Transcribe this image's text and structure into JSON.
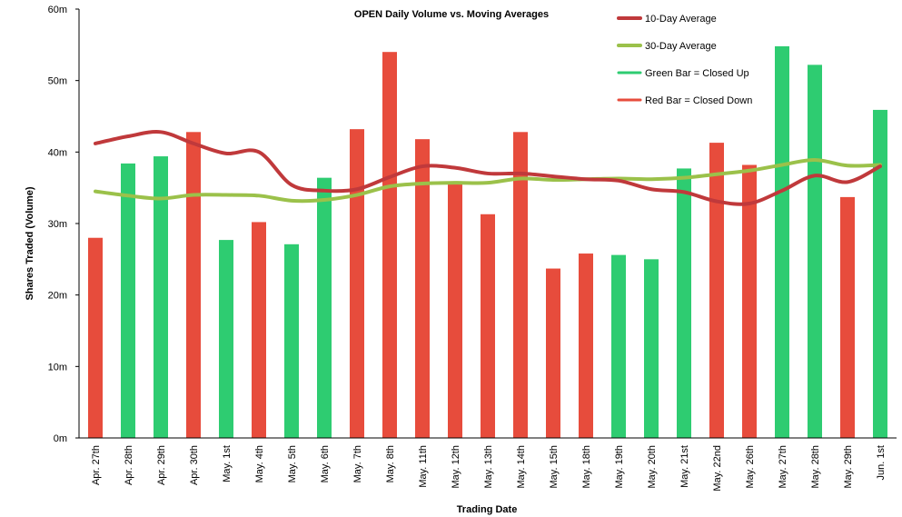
{
  "chart_data": {
    "type": "bar",
    "title": "OPEN Daily Volume vs. Moving Averages",
    "xlabel": "Trading Date",
    "ylabel": "Shares Traded (Volume)",
    "ylim": [
      0,
      60
    ],
    "y_ticks": [
      "0m",
      "10m",
      "20m",
      "30m",
      "40m",
      "50m",
      "60m"
    ],
    "grid": false,
    "legend_position": "top-right",
    "colors": {
      "up": "#2ecc71",
      "down": "#e74c3c",
      "avg10": "#c0393b",
      "avg30": "#9bc14a"
    },
    "categories": [
      "Apr. 27th",
      "Apr. 28th",
      "Apr. 29th",
      "Apr. 30th",
      "May. 1st",
      "May. 4th",
      "May. 5th",
      "May. 6th",
      "May. 7th",
      "May. 8th",
      "May. 11th",
      "May. 12th",
      "May. 13th",
      "May. 14th",
      "May. 15th",
      "May. 18th",
      "May. 19th",
      "May. 20th",
      "May. 21st",
      "May. 22nd",
      "May. 26th",
      "May. 27th",
      "May. 28th",
      "May. 29th",
      "Jun. 1st"
    ],
    "volume": [
      28.0,
      38.4,
      39.4,
      42.8,
      27.7,
      30.2,
      27.1,
      36.4,
      43.2,
      54.0,
      41.8,
      35.5,
      31.3,
      42.8,
      23.7,
      25.8,
      25.6,
      25.0,
      37.7,
      41.3,
      38.2,
      54.8,
      52.2,
      33.7,
      45.9
    ],
    "direction": [
      "down",
      "up",
      "up",
      "down",
      "up",
      "down",
      "up",
      "up",
      "down",
      "down",
      "down",
      "down",
      "down",
      "down",
      "down",
      "down",
      "up",
      "up",
      "up",
      "down",
      "down",
      "up",
      "up",
      "down",
      "up"
    ],
    "series": [
      {
        "name": "10-Day Average",
        "values": [
          41.2,
          42.2,
          42.8,
          41.2,
          39.8,
          40.0,
          35.4,
          34.6,
          34.8,
          36.5,
          38.0,
          37.8,
          37.0,
          37.0,
          36.6,
          36.2,
          36.0,
          34.8,
          34.4,
          33.1,
          32.8,
          34.6,
          36.7,
          35.8,
          38.0
        ]
      },
      {
        "name": "30-Day Average",
        "values": [
          34.5,
          33.9,
          33.5,
          34.0,
          34.0,
          33.9,
          33.2,
          33.3,
          34.0,
          35.2,
          35.6,
          35.7,
          35.7,
          36.3,
          36.1,
          36.2,
          36.3,
          36.2,
          36.4,
          36.9,
          37.4,
          38.2,
          38.9,
          38.1,
          38.2
        ]
      }
    ],
    "legend_notes": [
      "Green Bar = Closed Up",
      "Red Bar = Closed Down"
    ]
  }
}
